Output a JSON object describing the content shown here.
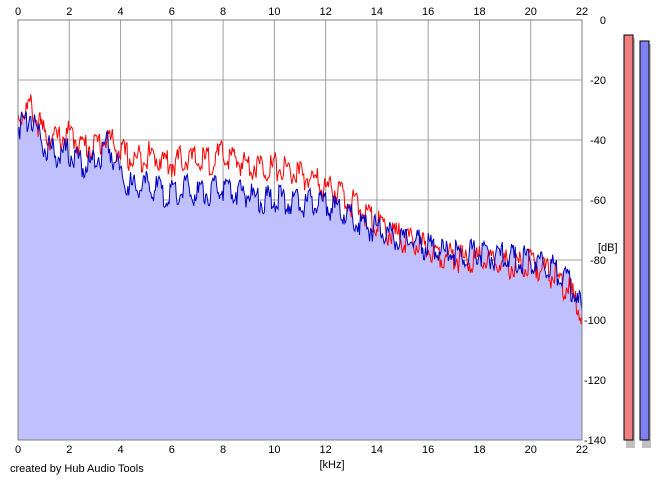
{
  "chart_data": {
    "type": "area",
    "x_unit_label": "[kHz]",
    "y_unit_label": "[dB]",
    "xlim": [
      0,
      22
    ],
    "ylim": [
      -140,
      0
    ],
    "x_ticks": [
      "0",
      "2",
      "4",
      "6",
      "8",
      "10",
      "12",
      "14",
      "16",
      "18",
      "20",
      "22"
    ],
    "y_ticks": [
      "0",
      "-20",
      "-40",
      "-60",
      "-80",
      "-100",
      "-120",
      "-140"
    ],
    "grid": true,
    "series": [
      {
        "color": "#ff0000",
        "fill": false,
        "x": [
          0,
          0.5,
          1,
          1.5,
          2,
          2.5,
          3,
          3.5,
          4,
          4.5,
          5,
          5.5,
          6,
          6.5,
          7,
          7.5,
          8,
          8.5,
          9,
          9.5,
          10,
          10.5,
          11,
          11.5,
          12,
          12.5,
          13,
          13.5,
          14,
          14.5,
          15,
          15.5,
          16,
          16.5,
          17,
          17.5,
          18,
          18.5,
          19,
          19.5,
          20,
          20.5,
          21,
          21.5,
          22
        ],
        "y": [
          -32,
          -29,
          -38,
          -40,
          -38,
          -42,
          -42,
          -39,
          -44,
          -47,
          -45,
          -46,
          -48,
          -46,
          -47,
          -47,
          -45,
          -47,
          -48,
          -49,
          -49,
          -50,
          -52,
          -53,
          -56,
          -57,
          -61,
          -64,
          -68,
          -71,
          -73,
          -75,
          -76,
          -78,
          -79,
          -80,
          -80,
          -81,
          -81,
          -82,
          -81,
          -83,
          -86,
          -90,
          -98
        ]
      },
      {
        "color": "#0000c0",
        "fill": true,
        "fill_color": "#c0c0ff",
        "x": [
          0,
          0.5,
          1,
          1.5,
          2,
          2.5,
          3,
          3.5,
          4,
          4.5,
          5,
          5.5,
          6,
          6.5,
          7,
          7.5,
          8,
          8.5,
          9,
          9.5,
          10,
          10.5,
          11,
          11.5,
          12,
          12.5,
          13,
          13.5,
          14,
          14.5,
          15,
          15.5,
          16,
          16.5,
          17,
          17.5,
          18,
          18.5,
          19,
          19.5,
          20,
          20.5,
          21,
          21.5,
          22
        ],
        "y": [
          -36,
          -31,
          -41,
          -45,
          -44,
          -49,
          -47,
          -41,
          -51,
          -56,
          -55,
          -57,
          -58,
          -56,
          -58,
          -57,
          -56,
          -57,
          -58,
          -60,
          -60,
          -60,
          -61,
          -61,
          -62,
          -63,
          -66,
          -68,
          -70,
          -72,
          -73,
          -74,
          -76,
          -77,
          -78,
          -78,
          -78,
          -79,
          -79,
          -80,
          -80,
          -81,
          -84,
          -88,
          -97
        ]
      }
    ],
    "level_meters": [
      {
        "color": "#f08080",
        "value_db": -5
      },
      {
        "color": "#8080f0",
        "value_db": -7
      }
    ]
  },
  "credit": "created by Hub Audio Tools"
}
